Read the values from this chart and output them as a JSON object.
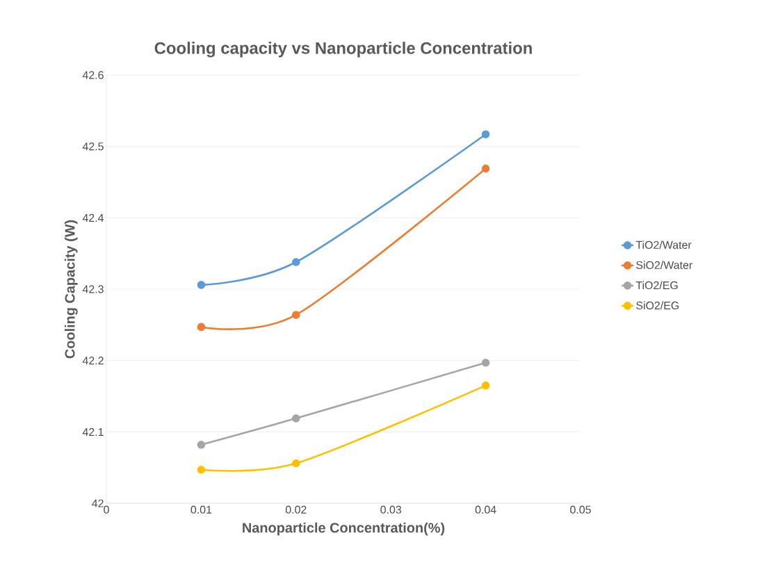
{
  "chart_data": {
    "type": "line",
    "title": "Cooling capacity vs Nanoparticle Concentration",
    "xlabel": "Nanoparticle Concentration(%)",
    "ylabel": "Cooling Capacity (W)",
    "x": [
      0.01,
      0.02,
      0.04
    ],
    "series": [
      {
        "name": "TiO2/Water",
        "color": "#5b9bd5",
        "values": [
          42.306,
          42.338,
          42.517
        ]
      },
      {
        "name": "SiO2/Water",
        "color": "#ed7d31",
        "values": [
          42.247,
          42.264,
          42.469
        ]
      },
      {
        "name": "TiO2/EG",
        "color": "#a5a5a5",
        "values": [
          42.082,
          42.119,
          42.197
        ]
      },
      {
        "name": "SiO2/EG",
        "color": "#ffc000",
        "values": [
          42.047,
          42.056,
          42.165
        ]
      }
    ],
    "xlim": [
      0,
      0.05
    ],
    "xticks": [
      0,
      0.01,
      0.02,
      0.03,
      0.04,
      0.05
    ],
    "ylim": [
      42,
      42.6
    ],
    "yticks": [
      42,
      42.1,
      42.2,
      42.3,
      42.4,
      42.5,
      42.6
    ],
    "grid": "y",
    "legend": "right",
    "marker": "circle",
    "line_style": "solid"
  }
}
